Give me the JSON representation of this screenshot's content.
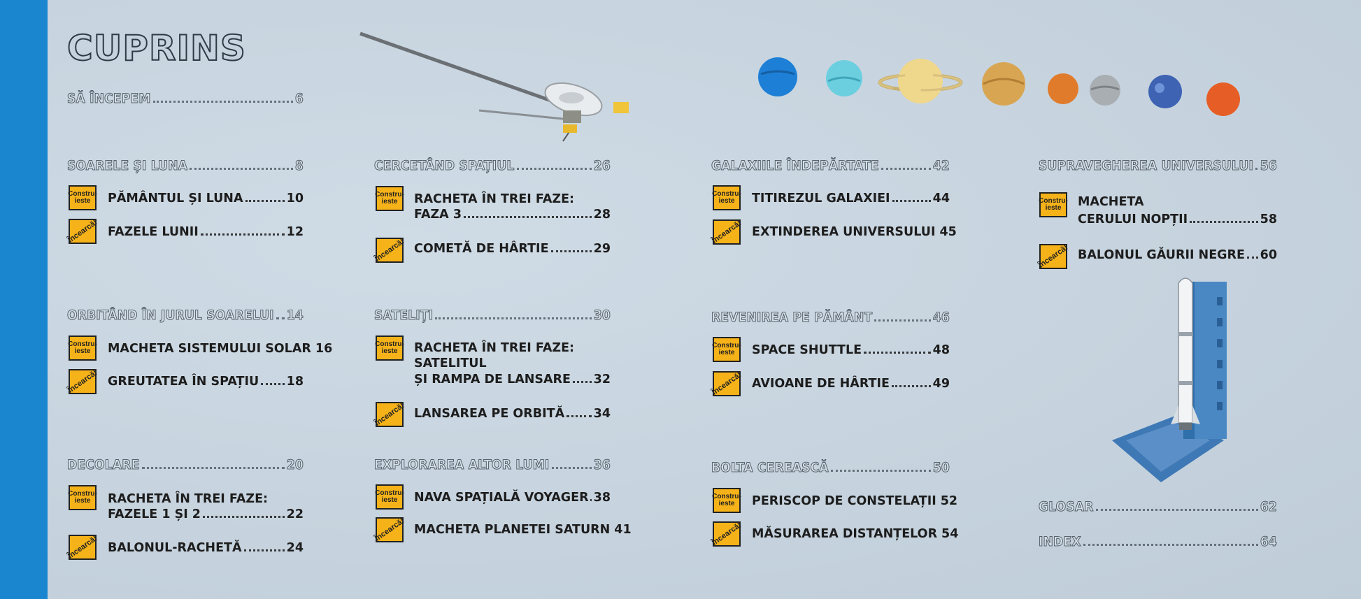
{
  "title": "CUPRINS",
  "badges": {
    "build": "Constru-ieste",
    "try": "Încearcă!"
  },
  "col1": {
    "sa_incepem": {
      "label": "SĂ ÎNCEPEM",
      "page": "6"
    },
    "soarele": {
      "label": "SOARELE ȘI LUNA ",
      "page": "8"
    },
    "pamantul": {
      "label": "PĂMÂNTUL ȘI LUNA",
      "page": "10"
    },
    "fazele": {
      "label": "FAZELE LUNII",
      "page": "12"
    },
    "orbitand": {
      "label": "ORBITÂND ÎN JURUL SOARELUI ",
      "page": "14"
    },
    "macheta_solar": {
      "label": "MACHETA SISTEMULUI SOLAR 16"
    },
    "greutatea": {
      "label": "GREUTATEA ÎN SPAȚIU",
      "page": "18"
    },
    "decolare": {
      "label": "DECOLARE ",
      "page": "20"
    },
    "racheta12_line1": "RACHETA ÎN TREI FAZE:",
    "racheta12": {
      "label": "FAZELE 1 ȘI 2 ",
      "page": "22"
    },
    "balonul_racheta": {
      "label": "BALONUL-RACHETĂ",
      "page": "24"
    }
  },
  "col2": {
    "cercetand": {
      "label": "CERCETÂND SPAȚIUL ",
      "page": "26"
    },
    "racheta3_line1": "RACHETA ÎN TREI FAZE:",
    "racheta3": {
      "label": "FAZA 3",
      "page": "28"
    },
    "cometa": {
      "label": "COMETĂ DE HÂRTIE",
      "page": "29"
    },
    "sateliti": {
      "label": "SATELIȚI",
      "page": "30"
    },
    "racheta_sat_line1": "RACHETA ÎN TREI FAZE:",
    "racheta_sat_line2": "SATELITUL",
    "racheta_sat": {
      "label": "ȘI RAMPA DE LANSARE ",
      "page": "32"
    },
    "lansarea": {
      "label": "LANSAREA PE ORBITĂ",
      "page": "34"
    },
    "explorarea": {
      "label": "EXPLORAREA ALTOR LUMI",
      "page": "36"
    },
    "voyager": {
      "label": "NAVA SPAȚIALĂ VOYAGER",
      "page": "38"
    },
    "saturn": {
      "label": "MACHETA PLANETEI SATURN",
      "page": "41"
    }
  },
  "col3": {
    "galaxiile": {
      "label": "GALAXIILE ÎNDEPĂRTATE",
      "page": "42"
    },
    "titirezul": {
      "label": "TITIREZUL GALAXIEI",
      "page": "44"
    },
    "extinderea": {
      "label": "EXTINDEREA UNIVERSULUI",
      "page": "45"
    },
    "revenirea": {
      "label": "REVENIREA PE PĂMÂNT",
      "page": "46"
    },
    "shuttle": {
      "label": "SPACE SHUTTLE ",
      "page": "48"
    },
    "avioane": {
      "label": "AVIOANE DE HÂRTIE ",
      "page": "49"
    },
    "bolta": {
      "label": "BOLTA CEREASCĂ",
      "page": "50"
    },
    "periscop": {
      "label": "PERISCOP DE CONSTELAȚII",
      "page": "52"
    },
    "masurarea": {
      "label": "MĂSURAREA DISTANȚELOR",
      "page": "54"
    }
  },
  "col4": {
    "supravegherea": {
      "label": "SUPRAVEGHEREA UNIVERSULUI",
      "page": "56"
    },
    "macheta_line1": "MACHETA",
    "macheta_cerului": {
      "label": "CERULUI NOPȚII ",
      "page": "58"
    },
    "balonul_gaurii": {
      "label": "BALONUL GĂURII NEGRE ",
      "page": "60"
    },
    "glosar": {
      "label": "GLOSAR",
      "page": "62"
    },
    "index": {
      "label": "INDEX",
      "page": "64"
    }
  },
  "colors": {
    "blue_strip": "#1a86cf",
    "badge": "#f6b219",
    "background": "#c9d6e1"
  },
  "illustrations": [
    "voyager-probe-icon",
    "planets-row-icon",
    "rocket-launchpad-icon"
  ]
}
